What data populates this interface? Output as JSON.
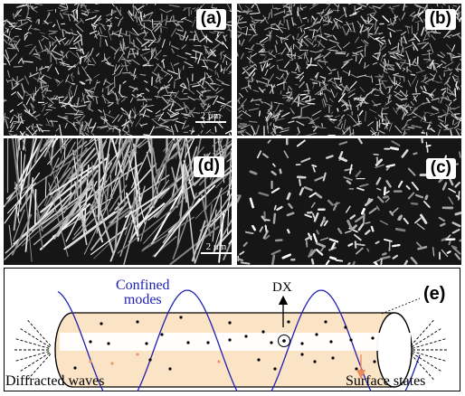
{
  "figure": {
    "panels": [
      {
        "id": "a",
        "label": "(a)",
        "scale_bar": "2 μm"
      },
      {
        "id": "b",
        "label": "(b)",
        "scale_bar": ""
      },
      {
        "id": "d",
        "label": "(d)",
        "scale_bar": "2 μm"
      },
      {
        "id": "c",
        "label": "(c)",
        "scale_bar": ""
      }
    ],
    "diagram": {
      "label": "(e)",
      "confined_modes": "Confined\nmodes",
      "dx_label": "DX",
      "diffracted_waves": "Diffracted waves",
      "surface_states": "Surface states",
      "colors": {
        "wave": "#1f1fb4",
        "rod_fill": "#fbe3c6",
        "rod_stroke": "#000000",
        "surface_arrow": "#ee8a5a",
        "confined_text": "#1f1fb4"
      }
    }
  }
}
